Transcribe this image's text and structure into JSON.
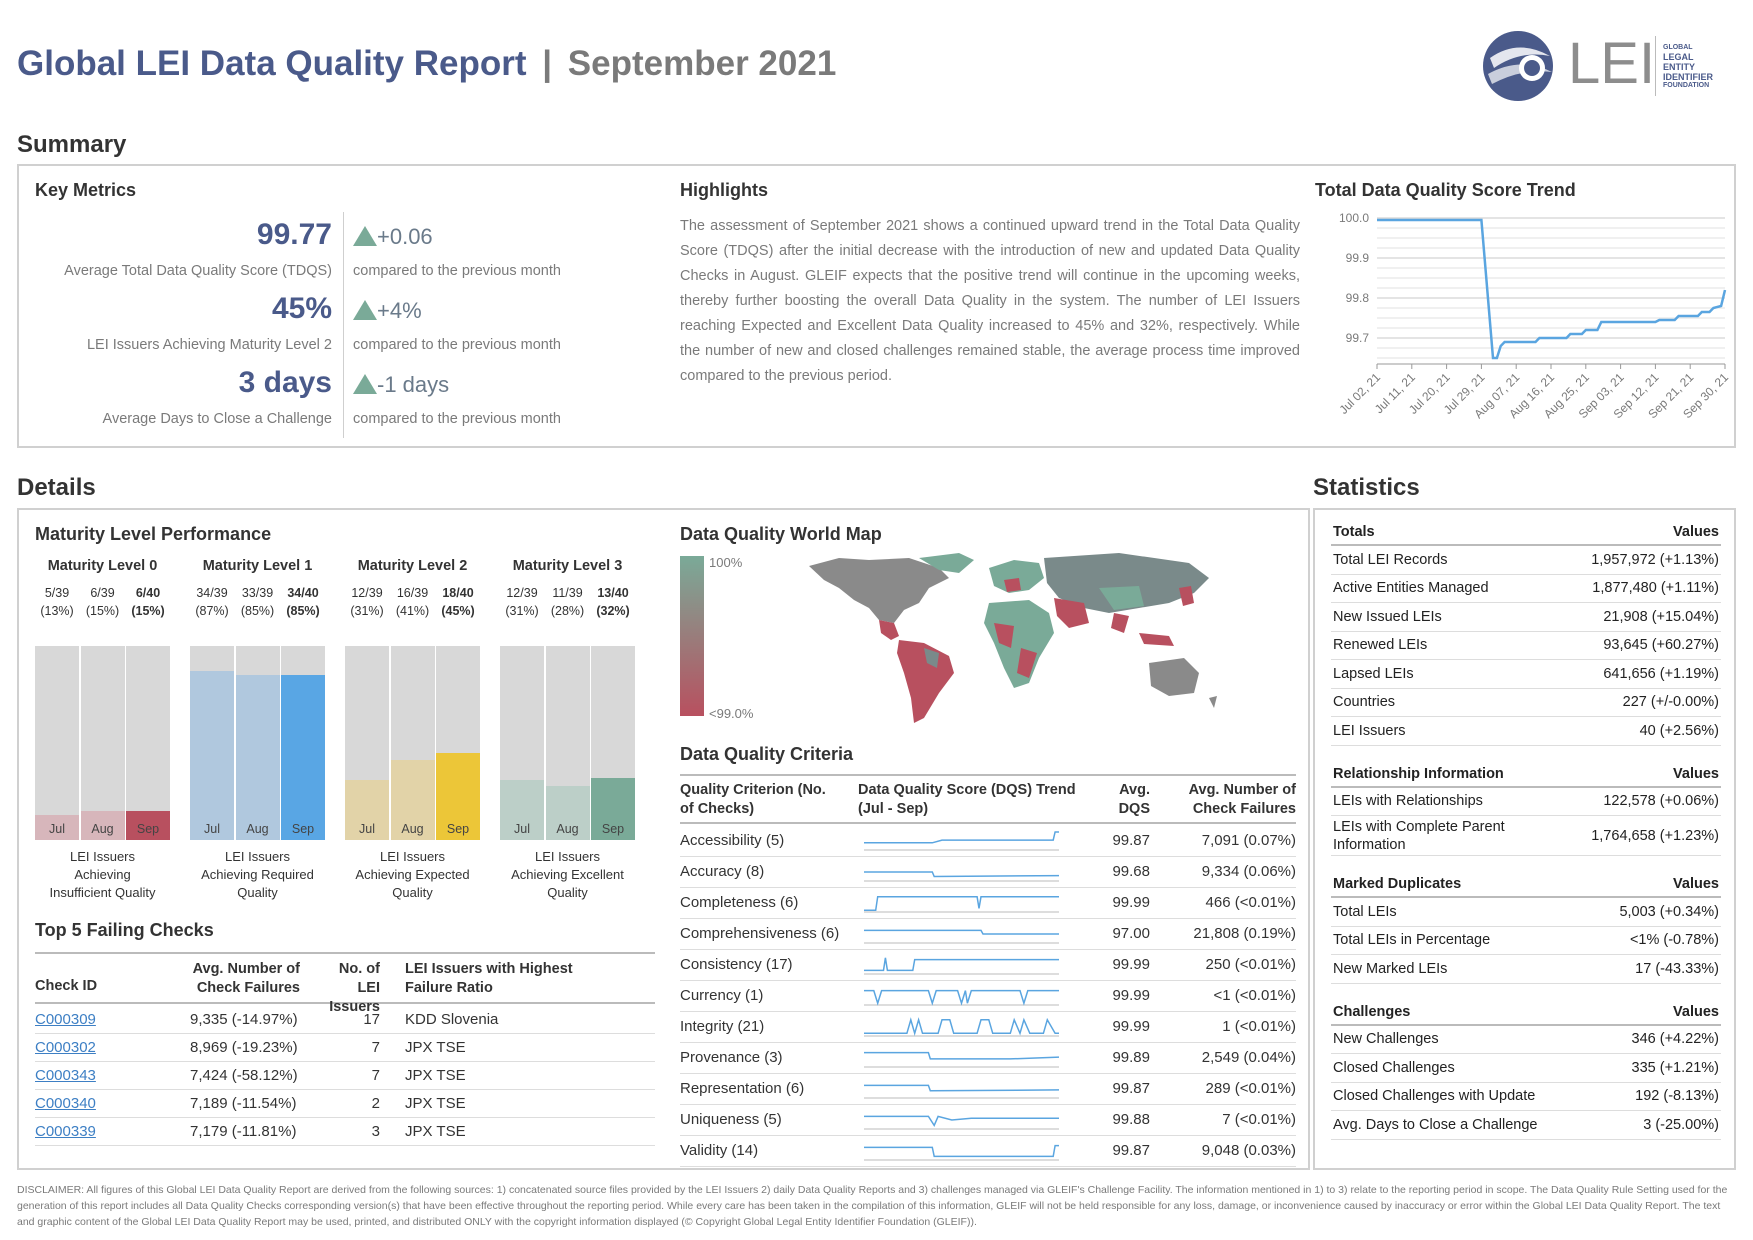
{
  "header": {
    "title": "Global LEI Data Quality Report",
    "separator": "|",
    "period": "September 2021",
    "logo_text": "LEI",
    "logo_sub": [
      "GLOBAL",
      "LEGAL",
      "ENTITY",
      "IDENTIFIER",
      "FOUNDATION"
    ]
  },
  "summary": {
    "section_title": "Summary",
    "key_metrics_title": "Key Metrics",
    "metrics": [
      {
        "value": "99.77",
        "label": "Average Total Data Quality Score (TDQS)",
        "delta": "+0.06",
        "compare": "compared to the previous month"
      },
      {
        "value": "45%",
        "label": "LEI Issuers Achieving Maturity Level 2",
        "delta": "+4%",
        "compare": "compared to the previous month"
      },
      {
        "value": "3 days",
        "label": "Average Days to Close a Challenge",
        "delta": "-1 days",
        "compare": "compared to the previous month"
      }
    ],
    "highlights_title": "Highlights",
    "highlights_text": "The assessment of September 2021 shows a continued upward trend in the Total Data Quality Score (TDQS) after the initial decrease with the introduction of new and updated Data Quality Checks in August. GLEIF expects that the positive trend will continue in the upcoming weeks, thereby further boosting the overall Data Quality in the system. The number of LEI Issuers reaching Expected and Excellent Data Quality increased to 45% and 32%, respectively. While the number of new and closed challenges remained stable, the average process time improved compared to the previous period.",
    "trend_title": "Total Data Quality Score Trend"
  },
  "chart_data": {
    "type": "line",
    "title": "Total Data Quality Score Trend",
    "x_ticks": [
      "Jul 02, 21",
      "Jul 11, 21",
      "Jul 20, 21",
      "Jul 29, 21",
      "Aug 07, 21",
      "Aug 16, 21",
      "Aug 25, 21",
      "Sep 03, 21",
      "Sep 12, 21",
      "Sep 21, 21",
      "Sep 30, 21"
    ],
    "y_ticks": [
      "100.0",
      "99.9",
      "99.8",
      "99.7"
    ],
    "ylim": [
      99.645,
      100.0
    ],
    "x": [
      "Jul 02, 21",
      "Jul 29, 21",
      "Aug 01, 21",
      "Aug 02, 21",
      "Aug 03, 21",
      "Aug 04, 21",
      "Aug 06, 21",
      "Aug 12, 21",
      "Aug 13, 21",
      "Aug 20, 21",
      "Aug 21, 21",
      "Aug 24, 21",
      "Aug 25, 21",
      "Aug 28, 21",
      "Aug 29, 21",
      "Sep 12, 21",
      "Sep 13, 21",
      "Sep 17, 21",
      "Sep 18, 21",
      "Sep 23, 21",
      "Sep 24, 21",
      "Sep 26, 21",
      "Sep 27, 21",
      "Sep 29, 21",
      "Sep 30, 21"
    ],
    "values": [
      99.995,
      99.995,
      99.65,
      99.65,
      99.68,
      99.69,
      99.69,
      99.69,
      99.7,
      99.7,
      99.71,
      99.71,
      99.72,
      99.72,
      99.74,
      99.74,
      99.745,
      99.745,
      99.755,
      99.755,
      99.765,
      99.765,
      99.775,
      99.78,
      99.82
    ],
    "grid": true,
    "color": "#5aa5e0"
  },
  "details": {
    "section_title": "Details",
    "maturity_title": "Maturity Level Performance",
    "levels": [
      {
        "title": "Maturity Level 0",
        "caption": "LEI Issuers Achieving Insufficient Quality",
        "bars": [
          {
            "month": "Jul",
            "frac": "5/39",
            "pct": "(13%)",
            "value": 0.13
          },
          {
            "month": "Aug",
            "frac": "6/39",
            "pct": "(15%)",
            "value": 0.15
          },
          {
            "month": "Sep",
            "frac": "6/40",
            "pct": "(15%)",
            "value": 0.15
          }
        ],
        "light": "#d7b6bb",
        "dark": "#b8505f"
      },
      {
        "title": "Maturity Level 1",
        "caption": "LEI Issuers Achieving Required Quality",
        "bars": [
          {
            "month": "Jul",
            "frac": "34/39",
            "pct": "(87%)",
            "value": 0.87
          },
          {
            "month": "Aug",
            "frac": "33/39",
            "pct": "(85%)",
            "value": 0.85
          },
          {
            "month": "Sep",
            "frac": "34/40",
            "pct": "(85%)",
            "value": 0.85
          }
        ],
        "light": "#b0c8de",
        "dark": "#59a6e4"
      },
      {
        "title": "Maturity Level 2",
        "caption": "LEI Issuers Achieving Expected Quality",
        "bars": [
          {
            "month": "Jul",
            "frac": "12/39",
            "pct": "(31%)",
            "value": 0.31
          },
          {
            "month": "Aug",
            "frac": "16/39",
            "pct": "(41%)",
            "value": 0.41
          },
          {
            "month": "Sep",
            "frac": "18/40",
            "pct": "(45%)",
            "value": 0.45
          }
        ],
        "light": "#e2d3a8",
        "dark": "#ecc638"
      },
      {
        "title": "Maturity Level 3",
        "caption": "LEI Issuers Achieving Excellent Quality",
        "bars": [
          {
            "month": "Jul",
            "frac": "12/39",
            "pct": "(31%)",
            "value": 0.31
          },
          {
            "month": "Aug",
            "frac": "11/39",
            "pct": "(28%)",
            "value": 0.28
          },
          {
            "month": "Sep",
            "frac": "13/40",
            "pct": "(32%)",
            "value": 0.32
          }
        ],
        "light": "#bccfc8",
        "dark": "#7aaa98"
      }
    ],
    "top5_title": "Top 5 Failing Checks",
    "top5_headers": [
      "Check ID",
      "Avg. Number of Check Failures",
      "No. of LEI Issuers",
      "LEI Issuers with Highest Failure Ratio"
    ],
    "top5_rows": [
      {
        "id": "C000309",
        "fail": "9,335 (-14.97%)",
        "issuers": "17",
        "highest": "KDD Slovenia"
      },
      {
        "id": "C000302",
        "fail": "8,969 (-19.23%)",
        "issuers": "7",
        "highest": "JPX TSE"
      },
      {
        "id": "C000343",
        "fail": "7,424 (-58.12%)",
        "issuers": "7",
        "highest": "JPX TSE"
      },
      {
        "id": "C000340",
        "fail": "7,189 (-11.54%)",
        "issuers": "2",
        "highest": "JPX TSE"
      },
      {
        "id": "C000339",
        "fail": "7,179 (-11.81%)",
        "issuers": "3",
        "highest": "JPX TSE"
      }
    ],
    "map_title": "Data Quality World Map",
    "map_legend_top": "100%",
    "map_legend_bottom": "<99.0%",
    "criteria_title": "Data Quality Criteria",
    "criteria_headers": [
      "Quality Criterion (No. of Checks)",
      "Data Quality Score (DQS) Trend (Jul - Sep)",
      "Avg. DQS",
      "Avg. Number of Check Failures"
    ],
    "criteria": [
      {
        "name": "Accessibility (5)",
        "dqs": "99.87",
        "fail": "7,091 (0.07%)"
      },
      {
        "name": "Accuracy (8)",
        "dqs": "99.68",
        "fail": "9,334 (0.06%)"
      },
      {
        "name": "Completeness (6)",
        "dqs": "99.99",
        "fail": "466 (<0.01%)"
      },
      {
        "name": "Comprehensiveness (6)",
        "dqs": "97.00",
        "fail": "21,808 (0.19%)"
      },
      {
        "name": "Consistency (17)",
        "dqs": "99.99",
        "fail": "250 (<0.01%)"
      },
      {
        "name": "Currency (1)",
        "dqs": "99.99",
        "fail": "<1 (<0.01%)"
      },
      {
        "name": "Integrity (21)",
        "dqs": "99.99",
        "fail": "1 (<0.01%)"
      },
      {
        "name": "Provenance (3)",
        "dqs": "99.89",
        "fail": "2,549 (0.04%)"
      },
      {
        "name": "Representation (6)",
        "dqs": "99.87",
        "fail": "289 (<0.01%)"
      },
      {
        "name": "Uniqueness (5)",
        "dqs": "99.88",
        "fail": "7 (<0.01%)"
      },
      {
        "name": "Validity (14)",
        "dqs": "99.87",
        "fail": "9,048 (0.03%)"
      }
    ]
  },
  "statistics": {
    "section_title": "Statistics",
    "groups": [
      {
        "title": "Totals",
        "values_label": "Values",
        "rows": [
          {
            "label": "Total LEI Records",
            "value": "1,957,972 (+1.13%)"
          },
          {
            "label": "Active Entities Managed",
            "value": "1,877,480 (+1.11%)"
          },
          {
            "label": "New Issued LEIs",
            "value": "21,908 (+15.04%)"
          },
          {
            "label": "Renewed LEIs",
            "value": "93,645 (+60.27%)"
          },
          {
            "label": "Lapsed LEIs",
            "value": "641,656 (+1.19%)"
          },
          {
            "label": "Countries",
            "value": "227 (+/-0.00%)"
          },
          {
            "label": "LEI Issuers",
            "value": "40 (+2.56%)"
          }
        ]
      },
      {
        "title": "Relationship Information",
        "values_label": "Values",
        "rows": [
          {
            "label": "LEIs with Relationships",
            "value": "122,578 (+0.06%)"
          },
          {
            "label": "LEIs with Complete Parent Information",
            "value": "1,764,658 (+1.23%)"
          }
        ]
      },
      {
        "title": "Marked Duplicates",
        "values_label": "Values",
        "rows": [
          {
            "label": "Total LEIs",
            "value": "5,003 (+0.34%)"
          },
          {
            "label": "Total LEIs in Percentage",
            "value": "<1% (-0.78%)"
          },
          {
            "label": "New Marked LEIs",
            "value": "17 (-43.33%)"
          }
        ]
      },
      {
        "title": "Challenges",
        "values_label": "Values",
        "rows": [
          {
            "label": "New Challenges",
            "value": "346 (+4.22%)"
          },
          {
            "label": "Closed Challenges",
            "value": "335 (+1.21%)"
          },
          {
            "label": "Closed Challenges with Update",
            "value": "192 (-8.13%)"
          },
          {
            "label": "Avg. Days to Close a Challenge",
            "value": "3 (-25.00%)"
          }
        ]
      }
    ]
  },
  "disclaimer": "DISCLAIMER: All figures of this Global LEI Data Quality Report are derived from the following sources: 1) concatenated source files provided by the LEI Issuers 2) daily Data Quality Reports and 3) challenges managed via GLEIF's Challenge Facility. The information mentioned in 1) to 3) relate to the reporting period in scope. The Data Quality Rule Setting used for the generation of this report includes all Data Quality Checks corresponding version(s) that have been effective throughout the reporting period. While every care has been taken in the compilation of this information, GLEIF will not be held responsible for any loss, damage, or inconvenience caused by inaccuracy or error within the Global LEI Data Quality Report. The text and graphic content of the Global LEI Data Quality Report may be used, printed, and distributed ONLY with the copyright information displayed (© Copyright Global Legal Entity Identifier Foundation (GLEIF))."
}
